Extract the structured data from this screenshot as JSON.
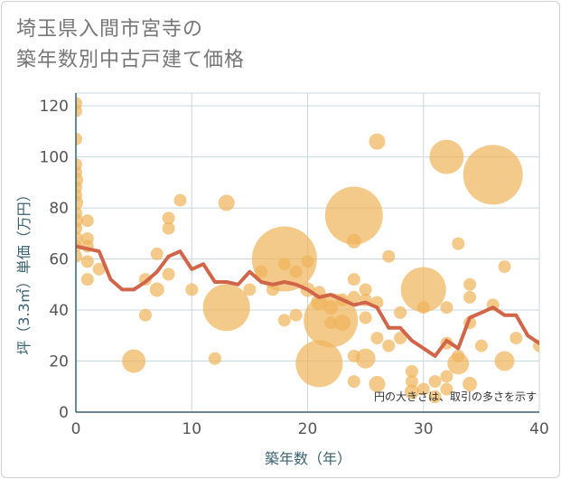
{
  "chart_data": {
    "type": "scatter",
    "title_lines": [
      "埼玉県入間市宮寺の",
      "築年数別中古戸建て価格"
    ],
    "xlabel": "築年数（年）",
    "ylabel": "坪（3.3㎡）単価（万円）",
    "note": "円の大きさは、取引の多さを示す",
    "xlim": [
      0,
      40
    ],
    "ylim": [
      0,
      125
    ],
    "xticks": [
      0,
      10,
      20,
      30,
      40
    ],
    "yticks": [
      0,
      20,
      40,
      60,
      80,
      100,
      120
    ],
    "grid": true,
    "colors": {
      "bubble": "#f0b45a",
      "line": "#d0654a",
      "grid": "#c8d6de",
      "axis": "#3a6270"
    },
    "bubbles": [
      {
        "x": 0,
        "y": 121,
        "r": 7
      },
      {
        "x": 0,
        "y": 118,
        "r": 7
      },
      {
        "x": 0,
        "y": 107,
        "r": 7
      },
      {
        "x": 0,
        "y": 97,
        "r": 7
      },
      {
        "x": 0,
        "y": 94,
        "r": 7
      },
      {
        "x": 0,
        "y": 91,
        "r": 8
      },
      {
        "x": 0,
        "y": 88,
        "r": 7
      },
      {
        "x": 0,
        "y": 85,
        "r": 7
      },
      {
        "x": 0,
        "y": 82,
        "r": 8
      },
      {
        "x": 0,
        "y": 78,
        "r": 7
      },
      {
        "x": 0,
        "y": 75,
        "r": 8
      },
      {
        "x": 0,
        "y": 72,
        "r": 7
      },
      {
        "x": 0,
        "y": 68,
        "r": 8
      },
      {
        "x": 0,
        "y": 65,
        "r": 7
      },
      {
        "x": 0,
        "y": 61,
        "r": 7
      },
      {
        "x": 1,
        "y": 75,
        "r": 7
      },
      {
        "x": 1,
        "y": 68,
        "r": 7
      },
      {
        "x": 1,
        "y": 65,
        "r": 7
      },
      {
        "x": 1,
        "y": 59,
        "r": 7
      },
      {
        "x": 1,
        "y": 52,
        "r": 7
      },
      {
        "x": 2,
        "y": 56,
        "r": 7
      },
      {
        "x": 5,
        "y": 20,
        "r": 13
      },
      {
        "x": 6,
        "y": 52,
        "r": 7
      },
      {
        "x": 6,
        "y": 38,
        "r": 7
      },
      {
        "x": 7,
        "y": 62,
        "r": 7
      },
      {
        "x": 7,
        "y": 48,
        "r": 8
      },
      {
        "x": 8,
        "y": 76,
        "r": 7
      },
      {
        "x": 8,
        "y": 72,
        "r": 7
      },
      {
        "x": 8,
        "y": 54,
        "r": 7
      },
      {
        "x": 9,
        "y": 83,
        "r": 7
      },
      {
        "x": 10,
        "y": 48,
        "r": 7
      },
      {
        "x": 12,
        "y": 21,
        "r": 7
      },
      {
        "x": 13,
        "y": 82,
        "r": 9
      },
      {
        "x": 13,
        "y": 41,
        "r": 26
      },
      {
        "x": 15,
        "y": 48,
        "r": 7
      },
      {
        "x": 16,
        "y": 55,
        "r": 7
      },
      {
        "x": 17,
        "y": 48,
        "r": 7
      },
      {
        "x": 18,
        "y": 60,
        "r": 36
      },
      {
        "x": 18,
        "y": 58,
        "r": 7
      },
      {
        "x": 18,
        "y": 36,
        "r": 7
      },
      {
        "x": 19,
        "y": 38,
        "r": 7
      },
      {
        "x": 19,
        "y": 55,
        "r": 7
      },
      {
        "x": 20,
        "y": 59,
        "r": 7
      },
      {
        "x": 20,
        "y": 48,
        "r": 8
      },
      {
        "x": 21,
        "y": 19,
        "r": 26
      },
      {
        "x": 21,
        "y": 47,
        "r": 7
      },
      {
        "x": 21,
        "y": 43,
        "r": 9
      },
      {
        "x": 22,
        "y": 36,
        "r": 30
      },
      {
        "x": 22,
        "y": 41,
        "r": 8
      },
      {
        "x": 22,
        "y": 35,
        "r": 7
      },
      {
        "x": 23,
        "y": 35,
        "r": 9
      },
      {
        "x": 23,
        "y": 44,
        "r": 7
      },
      {
        "x": 24,
        "y": 77,
        "r": 32
      },
      {
        "x": 24,
        "y": 67,
        "r": 8
      },
      {
        "x": 24,
        "y": 52,
        "r": 7
      },
      {
        "x": 24,
        "y": 45,
        "r": 7
      },
      {
        "x": 24,
        "y": 22,
        "r": 7
      },
      {
        "x": 24,
        "y": 12,
        "r": 7
      },
      {
        "x": 25,
        "y": 48,
        "r": 7
      },
      {
        "x": 25,
        "y": 44,
        "r": 7
      },
      {
        "x": 25,
        "y": 37,
        "r": 7
      },
      {
        "x": 25,
        "y": 21,
        "r": 11
      },
      {
        "x": 26,
        "y": 106,
        "r": 9
      },
      {
        "x": 26,
        "y": 43,
        "r": 7
      },
      {
        "x": 26,
        "y": 29,
        "r": 7
      },
      {
        "x": 26,
        "y": 11,
        "r": 9
      },
      {
        "x": 27,
        "y": 61,
        "r": 7
      },
      {
        "x": 27,
        "y": 26,
        "r": 7
      },
      {
        "x": 28,
        "y": 39,
        "r": 7
      },
      {
        "x": 28,
        "y": 29,
        "r": 7
      },
      {
        "x": 29,
        "y": 16,
        "r": 7
      },
      {
        "x": 29,
        "y": 12,
        "r": 7
      },
      {
        "x": 29,
        "y": 8,
        "r": 8
      },
      {
        "x": 30,
        "y": 48,
        "r": 25
      },
      {
        "x": 30,
        "y": 41,
        "r": 7
      },
      {
        "x": 30,
        "y": 9,
        "r": 7
      },
      {
        "x": 31,
        "y": 6,
        "r": 7
      },
      {
        "x": 31,
        "y": 12,
        "r": 7
      },
      {
        "x": 32,
        "y": 100,
        "r": 19
      },
      {
        "x": 32,
        "y": 41,
        "r": 7
      },
      {
        "x": 32,
        "y": 27,
        "r": 7
      },
      {
        "x": 32,
        "y": 14,
        "r": 7
      },
      {
        "x": 32,
        "y": 9,
        "r": 7
      },
      {
        "x": 33,
        "y": 66,
        "r": 7
      },
      {
        "x": 33,
        "y": 22,
        "r": 7
      },
      {
        "x": 33,
        "y": 19,
        "r": 12
      },
      {
        "x": 34,
        "y": 50,
        "r": 7
      },
      {
        "x": 34,
        "y": 45,
        "r": 7
      },
      {
        "x": 34,
        "y": 35,
        "r": 7
      },
      {
        "x": 34,
        "y": 11,
        "r": 8
      },
      {
        "x": 35,
        "y": 26,
        "r": 7
      },
      {
        "x": 36,
        "y": 93,
        "r": 33
      },
      {
        "x": 36,
        "y": 42,
        "r": 7
      },
      {
        "x": 37,
        "y": 57,
        "r": 7
      },
      {
        "x": 37,
        "y": 20,
        "r": 11
      },
      {
        "x": 38,
        "y": 29,
        "r": 7
      },
      {
        "x": 40,
        "y": 26,
        "r": 7
      }
    ],
    "line": {
      "x": [
        0,
        1,
        2,
        3,
        4,
        5,
        6,
        7,
        8,
        9,
        10,
        11,
        12,
        13,
        14,
        15,
        16,
        17,
        18,
        19,
        20,
        21,
        22,
        23,
        24,
        25,
        26,
        27,
        28,
        29,
        30,
        31,
        32,
        33,
        34,
        35,
        36,
        37,
        38,
        39,
        40
      ],
      "y": [
        65,
        64,
        63,
        52,
        48,
        48,
        51,
        55,
        61,
        63,
        56,
        58,
        51,
        51,
        50,
        55,
        51,
        50,
        51,
        50,
        48,
        45,
        46,
        44,
        42,
        43,
        41,
        33,
        33,
        28,
        25,
        22,
        28,
        25,
        37,
        39,
        41,
        38,
        38,
        30,
        27
      ]
    }
  }
}
